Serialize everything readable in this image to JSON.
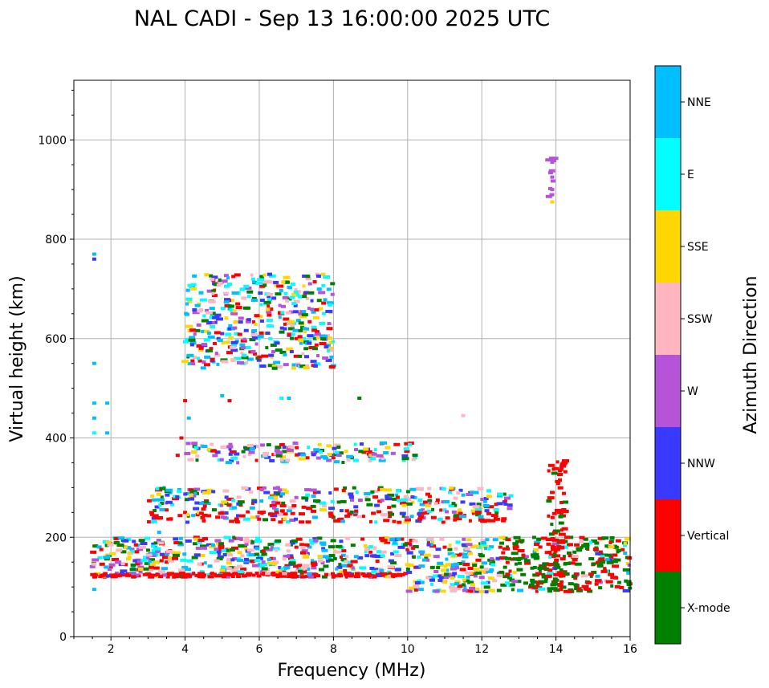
{
  "chart_data": {
    "type": "scatter",
    "title": "NAL CADI - Sep 13 16:00:00 2025 UTC",
    "xlabel": "Frequency (MHz)",
    "ylabel": "Virtual height (km)",
    "xlim": [
      1,
      16
    ],
    "ylim": [
      0,
      1120
    ],
    "xticks": [
      2,
      4,
      6,
      8,
      10,
      12,
      14,
      16
    ],
    "yticks": [
      0,
      200,
      400,
      600,
      800,
      1000
    ],
    "xtick_labels": [
      "2",
      "4",
      "6",
      "8",
      "10",
      "12",
      "14",
      "16"
    ],
    "ytick_labels": [
      "0",
      "200",
      "400",
      "600",
      "800",
      "1000"
    ],
    "grid": true,
    "colorbar": {
      "title": "Azimuth Direction",
      "categories": [
        {
          "name": "X-mode",
          "color": "#008000"
        },
        {
          "name": "Vertical",
          "color": "#ff0000"
        },
        {
          "name": "NNW",
          "color": "#3a3aff"
        },
        {
          "name": "W",
          "color": "#b553d9"
        },
        {
          "name": "SSW",
          "color": "#ffb6c1"
        },
        {
          "name": "SSE",
          "color": "#ffd700"
        },
        {
          "name": "E",
          "color": "#00ffff"
        },
        {
          "name": "NNE",
          "color": "#00bfff"
        }
      ]
    },
    "regions": [
      {
        "label": "E-layer echoes (~2-16 MHz)",
        "f_range": [
          1.5,
          16
        ],
        "h_range": [
          90,
          200
        ]
      },
      {
        "label": "F-layer echoes",
        "f_range": [
          3,
          12.8
        ],
        "h_range": [
          230,
          300
        ]
      },
      {
        "label": "F-layer multi-hop",
        "f_range": [
          3.9,
          10.3
        ],
        "h_range": [
          350,
          390
        ]
      },
      {
        "label": "Spread near 600 km",
        "f_range": [
          4,
          8
        ],
        "h_range": [
          540,
          730
        ]
      },
      {
        "label": "High-frequency column",
        "f_range": [
          13.8,
          14.3
        ],
        "h_range": [
          90,
          360
        ]
      },
      {
        "label": "Upper echoes",
        "f_range": [
          13.8,
          14.0
        ],
        "h_range": [
          870,
          965
        ]
      }
    ],
    "points": [
      {
        "f": 1.55,
        "h": 760,
        "c": 2
      },
      {
        "f": 1.55,
        "h": 770,
        "c": 7
      },
      {
        "f": 1.55,
        "h": 550,
        "c": 7
      },
      {
        "f": 1.55,
        "h": 470,
        "c": 7
      },
      {
        "f": 1.55,
        "h": 440,
        "c": 7
      },
      {
        "f": 1.55,
        "h": 410,
        "c": 6
      },
      {
        "f": 1.55,
        "h": 120,
        "c": 3
      },
      {
        "f": 1.55,
        "h": 95,
        "c": 7
      },
      {
        "f": 1.9,
        "h": 470,
        "c": 7
      },
      {
        "f": 1.9,
        "h": 410,
        "c": 7
      },
      {
        "f": 2.0,
        "h": 140,
        "c": 1
      },
      {
        "f": 2.1,
        "h": 155,
        "c": 5
      },
      {
        "f": 2.2,
        "h": 150,
        "c": 3
      },
      {
        "f": 2.4,
        "h": 145,
        "c": 1
      },
      {
        "f": 2.5,
        "h": 160,
        "c": 5
      },
      {
        "f": 2.6,
        "h": 140,
        "c": 7
      },
      {
        "f": 2.8,
        "h": 150,
        "c": 1
      },
      {
        "f": 2.8,
        "h": 130,
        "c": 3
      },
      {
        "f": 3.0,
        "h": 165,
        "c": 7
      },
      {
        "f": 3.2,
        "h": 180,
        "c": 7
      },
      {
        "f": 3.3,
        "h": 210,
        "c": 7
      },
      {
        "f": 3.5,
        "h": 150,
        "c": 1
      },
      {
        "f": 3.5,
        "h": 255,
        "c": 1
      },
      {
        "f": 3.6,
        "h": 290,
        "c": 7
      },
      {
        "f": 3.7,
        "h": 120,
        "c": 1
      },
      {
        "f": 3.8,
        "h": 365,
        "c": 1
      },
      {
        "f": 3.9,
        "h": 400,
        "c": 1
      },
      {
        "f": 4.0,
        "h": 250,
        "c": 1
      },
      {
        "f": 4.0,
        "h": 475,
        "c": 1
      },
      {
        "f": 4.1,
        "h": 440,
        "c": 7
      },
      {
        "f": 4.2,
        "h": 555,
        "c": 1
      },
      {
        "f": 4.4,
        "h": 555,
        "c": 1
      },
      {
        "f": 4.5,
        "h": 270,
        "c": 3
      },
      {
        "f": 4.6,
        "h": 575,
        "c": 2
      },
      {
        "f": 4.7,
        "h": 580,
        "c": 1
      },
      {
        "f": 4.8,
        "h": 590,
        "c": 1
      },
      {
        "f": 4.9,
        "h": 600,
        "c": 2
      },
      {
        "f": 5.0,
        "h": 610,
        "c": 2
      },
      {
        "f": 5.1,
        "h": 690,
        "c": 2
      },
      {
        "f": 5.2,
        "h": 660,
        "c": 7
      },
      {
        "f": 5.3,
        "h": 725,
        "c": 1
      },
      {
        "f": 5.3,
        "h": 620,
        "c": 7
      },
      {
        "f": 5.4,
        "h": 595,
        "c": 7
      },
      {
        "f": 5.0,
        "h": 485,
        "c": 7
      },
      {
        "f": 5.2,
        "h": 475,
        "c": 1
      },
      {
        "f": 5.0,
        "h": 250,
        "c": 3
      },
      {
        "f": 5.5,
        "h": 265,
        "c": 1
      },
      {
        "f": 6.0,
        "h": 250,
        "c": 1
      },
      {
        "f": 6.3,
        "h": 600,
        "c": 6
      },
      {
        "f": 6.6,
        "h": 480,
        "c": 6
      },
      {
        "f": 6.8,
        "h": 480,
        "c": 7
      },
      {
        "f": 7.0,
        "h": 600,
        "c": 1
      },
      {
        "f": 7.2,
        "h": 600,
        "c": 6
      },
      {
        "f": 7.5,
        "h": 600,
        "c": 0
      },
      {
        "f": 6.5,
        "h": 375,
        "c": 3
      },
      {
        "f": 6.8,
        "h": 380,
        "c": 1
      },
      {
        "f": 7.0,
        "h": 365,
        "c": 5
      },
      {
        "f": 7.3,
        "h": 360,
        "c": 1
      },
      {
        "f": 7.7,
        "h": 375,
        "c": 0
      },
      {
        "f": 8.0,
        "h": 360,
        "c": 1
      },
      {
        "f": 8.5,
        "h": 360,
        "c": 0
      },
      {
        "f": 8.9,
        "h": 375,
        "c": 1
      },
      {
        "f": 9.0,
        "h": 360,
        "c": 4
      },
      {
        "f": 9.3,
        "h": 360,
        "c": 4
      },
      {
        "f": 9.9,
        "h": 355,
        "c": 6
      },
      {
        "f": 10.2,
        "h": 360,
        "c": 6
      },
      {
        "f": 8.7,
        "h": 480,
        "c": 0
      },
      {
        "f": 11.5,
        "h": 445,
        "c": 4
      },
      {
        "f": 6.5,
        "h": 300,
        "c": 3
      },
      {
        "f": 7.0,
        "h": 280,
        "c": 3
      },
      {
        "f": 7.5,
        "h": 290,
        "c": 1
      },
      {
        "f": 8.0,
        "h": 240,
        "c": 0
      },
      {
        "f": 8.5,
        "h": 275,
        "c": 3
      },
      {
        "f": 8.9,
        "h": 280,
        "c": 4
      },
      {
        "f": 9.5,
        "h": 260,
        "c": 1
      },
      {
        "f": 10.2,
        "h": 280,
        "c": 7
      },
      {
        "f": 10.8,
        "h": 270,
        "c": 1
      },
      {
        "f": 11.0,
        "h": 255,
        "c": 6
      },
      {
        "f": 11.4,
        "h": 255,
        "c": 5
      },
      {
        "f": 11.5,
        "h": 285,
        "c": 7
      },
      {
        "f": 12.4,
        "h": 250,
        "c": 0
      },
      {
        "f": 6.0,
        "h": 160,
        "c": 7
      },
      {
        "f": 6.5,
        "h": 130,
        "c": 5
      },
      {
        "f": 7.0,
        "h": 180,
        "c": 1
      },
      {
        "f": 7.5,
        "h": 150,
        "c": 7
      },
      {
        "f": 8.0,
        "h": 120,
        "c": 1
      },
      {
        "f": 8.5,
        "h": 140,
        "c": 5
      },
      {
        "f": 9.0,
        "h": 170,
        "c": 1
      },
      {
        "f": 9.5,
        "h": 130,
        "c": 6
      },
      {
        "f": 10.0,
        "h": 175,
        "c": 1
      },
      {
        "f": 10.5,
        "h": 160,
        "c": 0
      },
      {
        "f": 11.0,
        "h": 180,
        "c": 1
      },
      {
        "f": 11.5,
        "h": 150,
        "c": 7
      },
      {
        "f": 12.0,
        "h": 140,
        "c": 0
      },
      {
        "f": 12.5,
        "h": 180,
        "c": 1
      },
      {
        "f": 13.0,
        "h": 155,
        "c": 0
      },
      {
        "f": 13.5,
        "h": 160,
        "c": 1
      },
      {
        "f": 14.0,
        "h": 140,
        "c": 3
      },
      {
        "f": 14.5,
        "h": 170,
        "c": 0
      },
      {
        "f": 15.0,
        "h": 145,
        "c": 1
      },
      {
        "f": 15.5,
        "h": 150,
        "c": 0
      },
      {
        "f": 15.8,
        "h": 175,
        "c": 1
      },
      {
        "f": 14.15,
        "h": 340,
        "c": 1
      },
      {
        "f": 14.15,
        "h": 270,
        "c": 1
      },
      {
        "f": 14.15,
        "h": 250,
        "c": 1
      },
      {
        "f": 14.15,
        "h": 190,
        "c": 1
      },
      {
        "f": 14.15,
        "h": 110,
        "c": 1
      },
      {
        "f": 14.15,
        "h": 100,
        "c": 0
      },
      {
        "f": 13.9,
        "h": 955,
        "c": 3
      },
      {
        "f": 13.9,
        "h": 925,
        "c": 3
      },
      {
        "f": 13.9,
        "h": 900,
        "c": 3
      },
      {
        "f": 13.9,
        "h": 875,
        "c": 5
      }
    ]
  }
}
